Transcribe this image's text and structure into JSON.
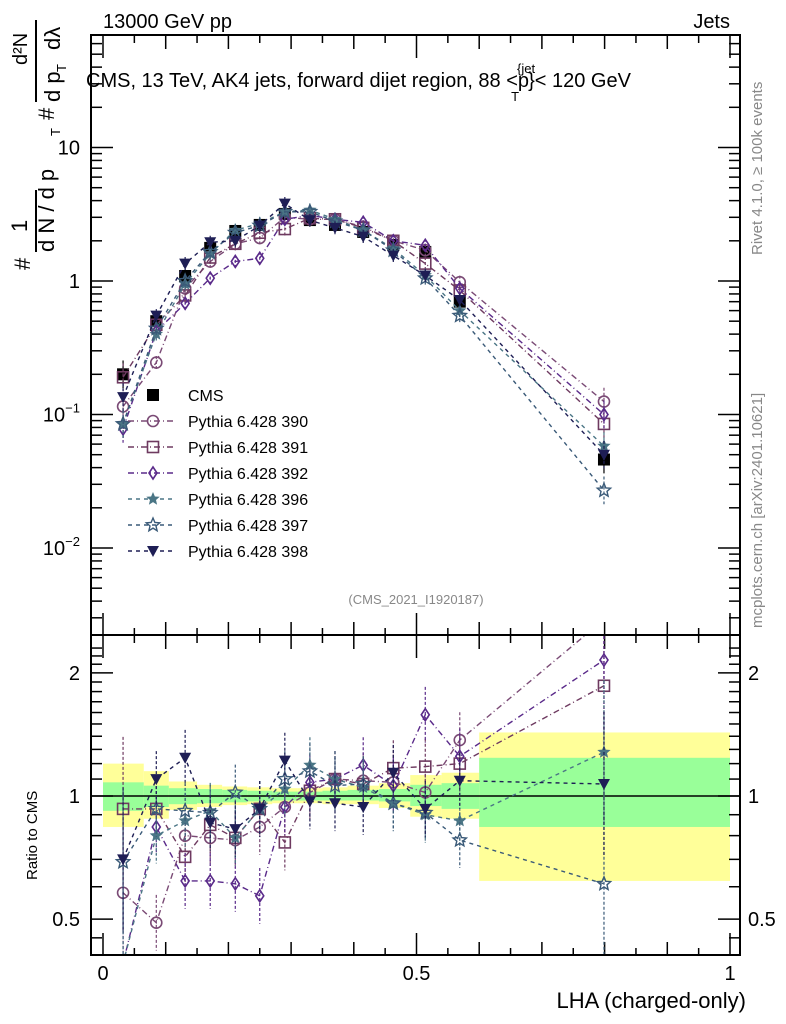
{
  "header": {
    "left": "13000 GeV pp",
    "right": "Jets"
  },
  "side_labels": {
    "rivet": "Rivet 4.1.0, ≥ 100k events",
    "mcplots": "mcplots.cern.ch [arXiv:2401.10621]"
  },
  "chart_data": [
    {
      "type": "line",
      "panel": "main",
      "title": "CMS, 13 TeV, AK4 jets, forward dijet region, 88 <p_T^{jet}< 120 GeV",
      "title_parts": {
        "pre": "CMS, 13 TeV, AK4 jets, forward dijet region, 88 <p",
        "sup": "{jet",
        "sub": "T",
        "post": "}< 120 GeV"
      },
      "analysis_id": "(CMS_2021_I1920187)",
      "ylabel": "1/(dN/dp_T) d²N/(dp_T dλ)",
      "ylabel_parts": {
        "hash": "#",
        "one": "1",
        "dn": "d N / d p",
        "T": "T",
        "d2n": "d²N",
        "dpt": "d p",
        "dl": "dλ"
      },
      "yscale": "log",
      "ylim": [
        0.0025,
        60
      ],
      "xlim": [
        -0.02,
        1.02
      ],
      "y_ticks": [
        {
          "v": 0.01,
          "base": "10",
          "exp": "−2"
        },
        {
          "v": 0.1,
          "base": "10",
          "exp": "−1"
        },
        {
          "v": 1,
          "base": "1",
          "exp": ""
        },
        {
          "v": 10,
          "base": "10",
          "exp": ""
        }
      ],
      "x": [
        0.032,
        0.085,
        0.131,
        0.171,
        0.211,
        0.25,
        0.29,
        0.33,
        0.37,
        0.415,
        0.463,
        0.514,
        0.569,
        0.799
      ],
      "legend_position": "center-left",
      "series": [
        {
          "name": "CMS",
          "marker": "filled-square",
          "color": "#000000",
          "dash": "none",
          "values": [
            0.2,
            0.5,
            1.09,
            1.77,
            2.37,
            2.63,
            3.18,
            2.86,
            2.63,
            2.33,
            1.86,
            1.65,
            0.7,
            0.046
          ]
        },
        {
          "name": "Pythia 6.428 390",
          "marker": "open-circle",
          "color": "#7a4a75",
          "dash": "dashdot",
          "values": [
            0.115,
            0.245,
            0.88,
            1.4,
            1.9,
            2.1,
            3.0,
            2.9,
            2.9,
            2.55,
            2.0,
            1.7,
            0.98,
            0.125
          ]
        },
        {
          "name": "Pythia 6.428 391",
          "marker": "open-square",
          "color": "#6e3a60",
          "dash": "dashdot",
          "values": [
            0.19,
            0.47,
            0.78,
            1.5,
            1.9,
            2.3,
            2.45,
            2.95,
            2.9,
            2.5,
            2.0,
            1.35,
            0.85,
            0.085
          ]
        },
        {
          "name": "Pythia 6.428 392",
          "marker": "open-diamond",
          "color": "#5a2a8a",
          "dash": "dashdot",
          "values": [
            0.078,
            0.42,
            0.68,
            1.05,
            1.4,
            1.48,
            2.9,
            3.1,
            2.9,
            2.75,
            2.0,
            1.85,
            0.88,
            0.1
          ]
        },
        {
          "name": "Pythia 6.428 396",
          "marker": "filled-star",
          "color": "#4a7585",
          "dash": "dashed",
          "values": [
            0.085,
            0.4,
            0.95,
            1.6,
            2.4,
            2.7,
            3.3,
            3.4,
            2.9,
            2.4,
            1.75,
            1.1,
            0.6,
            0.058
          ]
        },
        {
          "name": "Pythia 6.428 397",
          "marker": "open-star",
          "color": "#3a5a78",
          "dash": "dashed",
          "values": [
            0.085,
            0.44,
            1.0,
            1.65,
            2.3,
            2.6,
            3.3,
            3.3,
            2.8,
            2.4,
            1.7,
            1.05,
            0.55,
            0.027
          ]
        },
        {
          "name": "Pythia 6.428 398",
          "marker": "filled-triangle-down",
          "color": "#1e1e55",
          "dash": "dashed",
          "values": [
            0.135,
            0.55,
            1.35,
            1.95,
            2.0,
            2.6,
            3.8,
            2.85,
            2.5,
            2.15,
            1.55,
            1.1,
            0.72,
            0.05
          ]
        }
      ]
    },
    {
      "type": "line",
      "panel": "ratio",
      "ylabel": "Ratio to CMS",
      "xlabel": "LHA (charged-only)",
      "yscale": "log",
      "ylim": [
        0.42,
        2.4
      ],
      "xlim": [
        -0.02,
        1.02
      ],
      "y_ticks": [
        {
          "v": 0.5,
          "label": "0.5"
        },
        {
          "v": 1,
          "label": "1"
        },
        {
          "v": 2,
          "label": "2"
        }
      ],
      "x_ticks": [
        {
          "v": 0,
          "label": "0"
        },
        {
          "v": 0.5,
          "label": "0.5"
        },
        {
          "v": 1,
          "label": "1"
        }
      ],
      "bands": {
        "edges": [
          0.0,
          0.065,
          0.105,
          0.15,
          0.19,
          0.23,
          0.27,
          0.31,
          0.35,
          0.39,
          0.44,
          0.49,
          0.54,
          0.6,
          1.0
        ],
        "stat_color": "#99ff99",
        "total_color": "#ffff99",
        "stat_lo": [
          0.92,
          0.94,
          0.955,
          0.96,
          0.965,
          0.97,
          0.975,
          0.975,
          0.975,
          0.975,
          0.97,
          0.945,
          0.93,
          0.84
        ],
        "stat_hi": [
          1.08,
          1.06,
          1.045,
          1.04,
          1.035,
          1.03,
          1.025,
          1.025,
          1.03,
          1.035,
          1.04,
          1.065,
          1.075,
          1.24
        ],
        "total_lo": [
          0.84,
          0.88,
          0.925,
          0.94,
          0.95,
          0.955,
          0.96,
          0.96,
          0.955,
          0.955,
          0.935,
          0.89,
          0.88,
          0.62
        ],
        "total_hi": [
          1.2,
          1.15,
          1.085,
          1.065,
          1.055,
          1.05,
          1.045,
          1.045,
          1.05,
          1.06,
          1.075,
          1.125,
          1.14,
          1.43
        ]
      },
      "x": [
        0.032,
        0.085,
        0.131,
        0.171,
        0.211,
        0.25,
        0.29,
        0.33,
        0.37,
        0.415,
        0.463,
        0.514,
        0.569,
        0.799
      ],
      "series": [
        {
          "name": "Pythia 6.428 390",
          "values": [
            0.58,
            0.49,
            0.8,
            0.79,
            0.78,
            0.84,
            0.94,
            1.02,
            1.1,
            1.09,
            1.08,
            1.02,
            1.37,
            2.7
          ]
        },
        {
          "name": "Pythia 6.428 391",
          "values": [
            0.93,
            0.93,
            0.71,
            0.85,
            0.79,
            0.93,
            0.77,
            1.03,
            1.1,
            1.07,
            1.17,
            1.18,
            1.2,
            1.86
          ]
        },
        {
          "name": "Pythia 6.428 392",
          "values": [
            0.39,
            0.84,
            0.62,
            0.62,
            0.61,
            0.57,
            0.94,
            1.08,
            1.1,
            1.19,
            1.06,
            1.58,
            1.25,
            2.15
          ]
        },
        {
          "name": "Pythia 6.428 396",
          "values": [
            0.39,
            0.8,
            0.87,
            0.92,
            0.79,
            0.93,
            1.04,
            1.19,
            1.1,
            1.05,
            0.96,
            0.9,
            0.87,
            1.28
          ]
        },
        {
          "name": "Pythia 6.428 397",
          "values": [
            0.69,
            0.93,
            0.92,
            0.91,
            1.02,
            0.93,
            1.1,
            1.15,
            1.06,
            1.07,
            0.96,
            0.91,
            0.78,
            0.61
          ]
        },
        {
          "name": "Pythia 6.428 398",
          "values": [
            0.7,
            1.1,
            1.24,
            0.86,
            0.83,
            0.93,
            1.22,
            0.97,
            0.96,
            0.94,
            1.14,
            0.93,
            1.09,
            1.07
          ]
        }
      ]
    }
  ]
}
